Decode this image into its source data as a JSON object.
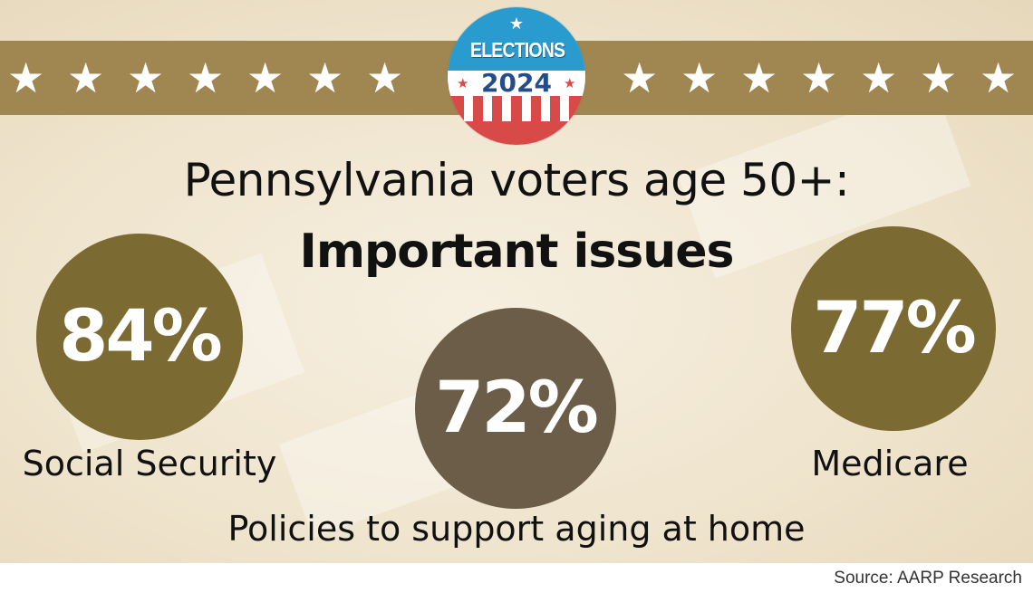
{
  "header": {
    "stars_left": [
      "★",
      "★",
      "★",
      "★",
      "★",
      "★",
      "★"
    ],
    "stars_right": [
      "★",
      "★",
      "★",
      "★",
      "★",
      "★",
      "★"
    ],
    "badge": {
      "top_text": "ELECTIONS",
      "year": "2024",
      "star": "★"
    }
  },
  "title": {
    "line1": "Pennsylvania voters age 50+:",
    "line2": "Important issues"
  },
  "issues": [
    {
      "percent": "84%",
      "label": "Social Security"
    },
    {
      "percent": "72%",
      "label": "Policies to support aging at home"
    },
    {
      "percent": "77%",
      "label": "Medicare"
    }
  ],
  "source": "Source: AARP Research",
  "colors": {
    "band": "#a08650",
    "circle_primary": "#7c6a33",
    "circle_secondary": "#6b5d48",
    "badge_blue": "#2a9bcf",
    "badge_red": "#d84a47"
  }
}
